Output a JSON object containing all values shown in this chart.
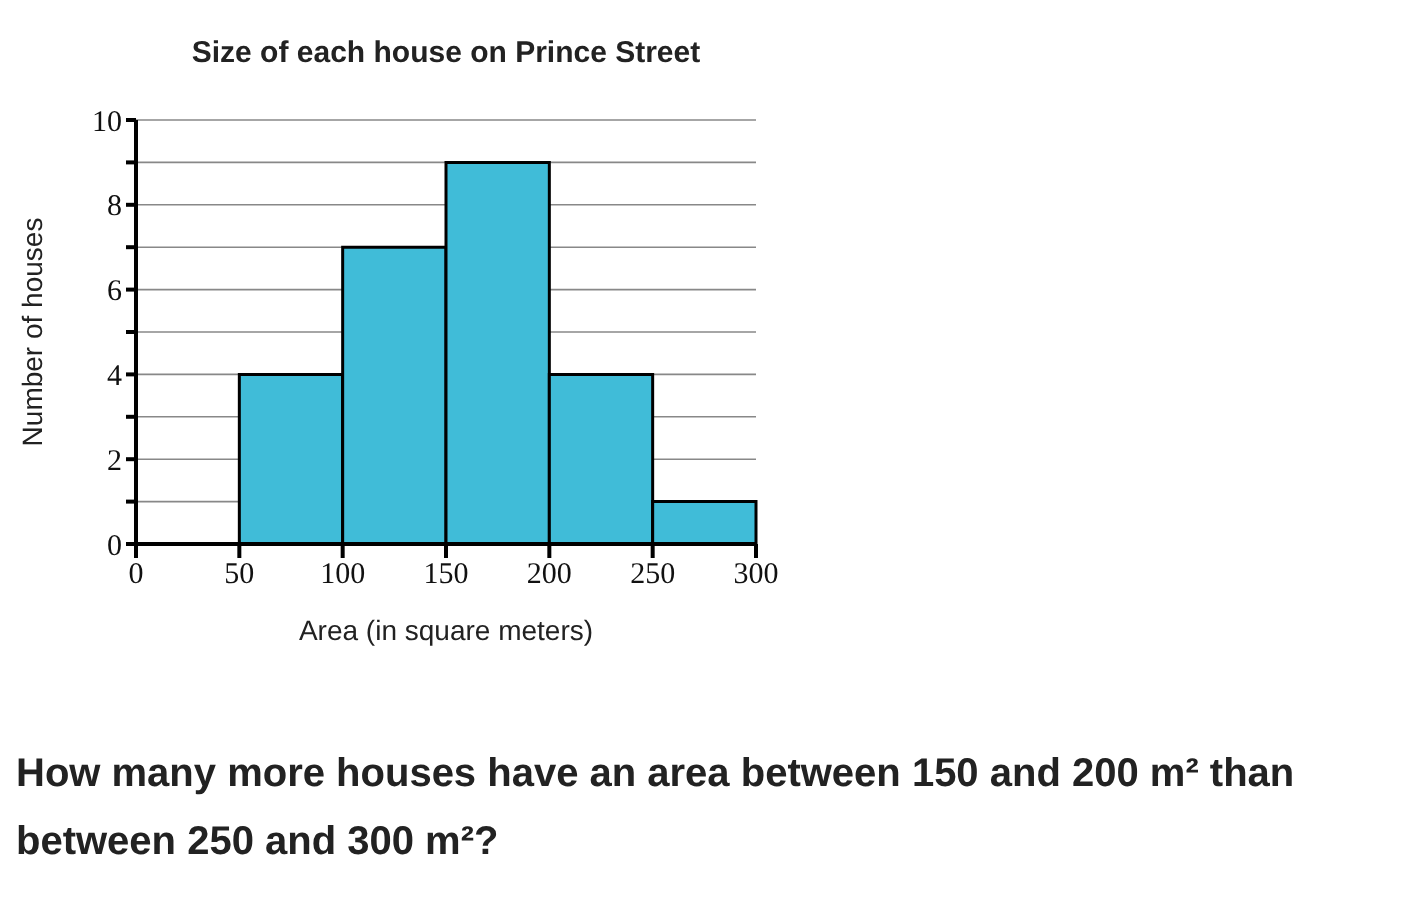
{
  "chart_data": {
    "type": "histogram",
    "title": "Size of each house on Prince Street",
    "xlabel": "Area (in square meters)",
    "ylabel": "Number of houses",
    "bins": [
      0,
      50,
      100,
      150,
      200,
      250,
      300
    ],
    "values": [
      0,
      4,
      7,
      9,
      4,
      1
    ],
    "color": "#40bcd8",
    "xlim": [
      0,
      300
    ],
    "xticks": [
      0,
      50,
      100,
      150,
      200,
      250,
      300
    ],
    "ylim": [
      0,
      10
    ],
    "yticks": [
      0,
      {
        "value": 1,
        "label": null
      },
      2,
      {
        "value": 3,
        "label": null
      },
      4,
      {
        "value": 5,
        "label": null
      },
      6,
      {
        "value": 7,
        "label": null
      },
      8,
      {
        "value": 9,
        "label": null
      },
      10
    ],
    "grid": "y",
    "annotations": [
      "How many more houses have an area between 150 and 200 m² than between 250 and 300 m²?"
    ]
  }
}
